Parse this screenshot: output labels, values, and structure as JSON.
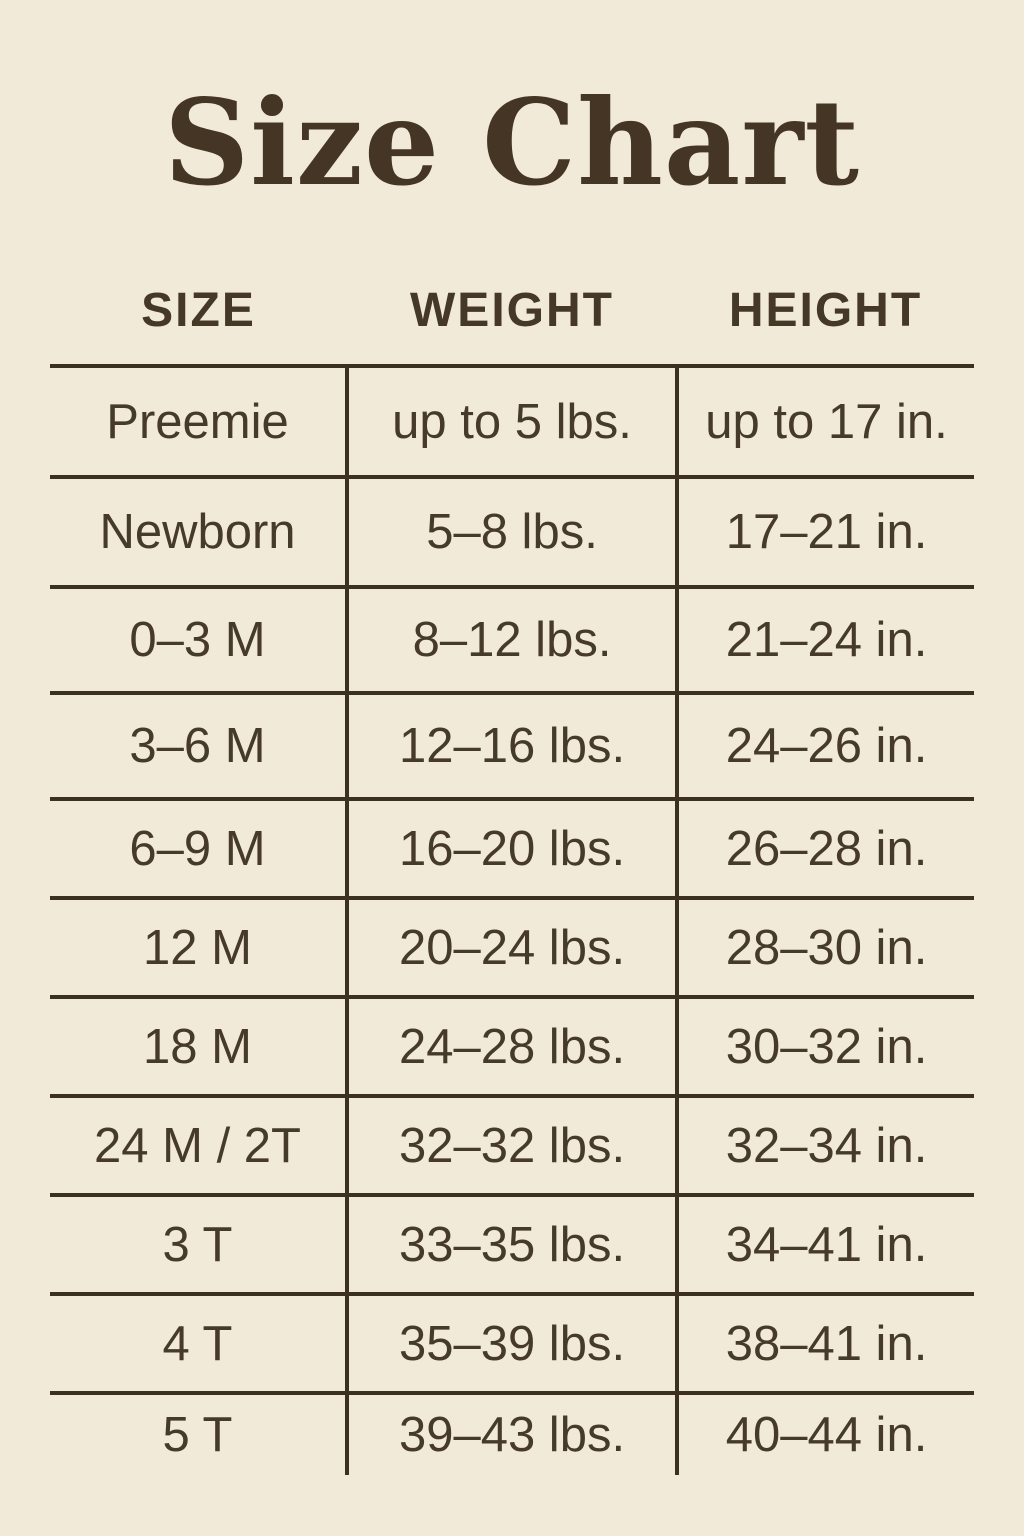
{
  "colors": {
    "background": "#f2ead9",
    "ink": "#453827",
    "line": "#3c3020"
  },
  "chart_data": {
    "type": "table",
    "title": "Size Chart",
    "columns": [
      "SIZE",
      "WEIGHT",
      "HEIGHT"
    ],
    "rows": [
      [
        "Preemie",
        "up to 5 lbs.",
        "up to 17 in."
      ],
      [
        "Newborn",
        "5–8 lbs.",
        "17–21 in."
      ],
      [
        "0–3 M",
        "8–12 lbs.",
        "21–24 in."
      ],
      [
        "3–6 M",
        "12–16 lbs.",
        "24–26 in."
      ],
      [
        "6–9 M",
        "16–20 lbs.",
        "26–28 in."
      ],
      [
        "12 M",
        "20–24 lbs.",
        "28–30 in."
      ],
      [
        "18 M",
        "24–28 lbs.",
        "30–32 in."
      ],
      [
        "24 M / 2T",
        "32–32 lbs.",
        "32–34 in."
      ],
      [
        "3 T",
        "33–35 lbs.",
        "34–41 in."
      ],
      [
        "4 T",
        "35–39 lbs.",
        "38–41 in."
      ],
      [
        "5 T",
        "39–43 lbs.",
        "40–44 in."
      ]
    ]
  }
}
